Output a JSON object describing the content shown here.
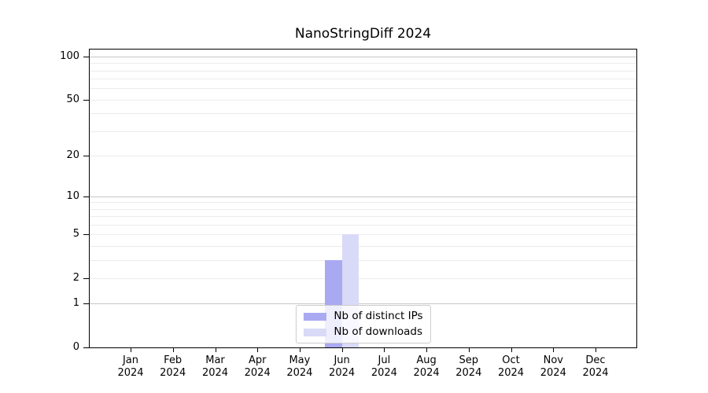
{
  "chart_data": {
    "type": "bar",
    "title": "NanoStringDiff 2024",
    "xlabel": "",
    "ylabel": "",
    "year_label": "2024",
    "categories": [
      "Jan",
      "Feb",
      "Mar",
      "Apr",
      "May",
      "Jun",
      "Jul",
      "Aug",
      "Sep",
      "Oct",
      "Nov",
      "Dec"
    ],
    "series": [
      {
        "name": "Nb of distinct IPs",
        "color": "#a9a9f2",
        "values": [
          0,
          0,
          0,
          0,
          0,
          3,
          0,
          0,
          0,
          0,
          0,
          0
        ]
      },
      {
        "name": "Nb of downloads",
        "color": "#d9d9f8",
        "values": [
          0,
          0,
          0,
          0,
          0,
          5,
          0,
          0,
          0,
          0,
          0,
          0
        ]
      }
    ],
    "yscale": "log1p",
    "ylim": [
      0,
      112
    ],
    "ytick_values": [
      0,
      1,
      2,
      5,
      10,
      20,
      50,
      100
    ],
    "grid_major_values": [
      1,
      10,
      100
    ],
    "grid_minor_values": [
      2,
      3,
      4,
      5,
      6,
      7,
      8,
      9,
      20,
      30,
      40,
      50,
      60,
      70,
      80,
      90
    ],
    "legend_position": "lower center",
    "colors": {
      "grid_major": "#c6c6c6",
      "grid_minor": "#ececec",
      "axis_border": "#000000",
      "background": "#ffffff"
    }
  }
}
